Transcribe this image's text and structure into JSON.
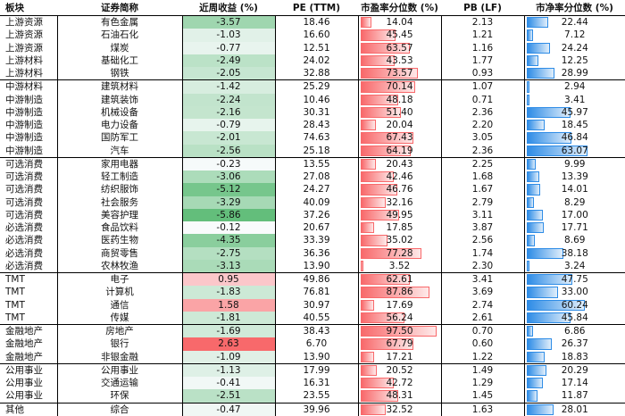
{
  "headers": [
    "板块",
    "证券简称",
    "近周收益 (%)",
    "PE (TTM)",
    "市盈率分位数 (%)",
    "PB (LF)",
    "市净率分位数 (%)"
  ],
  "colors": {
    "neg_return": "#63be7b",
    "pos_return": "#f8696b",
    "pe_bar": "#f8696b",
    "pb_bar": "#2e8ce6"
  },
  "rows": [
    {
      "sector": "上游资源",
      "name": "有色金属",
      "ret": "-3.57",
      "pe": "18.46",
      "pe_pct": "14.04",
      "pb": "2.13",
      "pb_pct": "22.44",
      "grp": true
    },
    {
      "sector": "上游资源",
      "name": "石油石化",
      "ret": "-1.03",
      "pe": "16.60",
      "pe_pct": "45.45",
      "pb": "1.21",
      "pb_pct": "7.12"
    },
    {
      "sector": "上游资源",
      "name": "煤炭",
      "ret": "-0.77",
      "pe": "12.51",
      "pe_pct": "63.57",
      "pb": "1.16",
      "pb_pct": "24.24"
    },
    {
      "sector": "上游材料",
      "name": "基础化工",
      "ret": "-2.49",
      "pe": "24.02",
      "pe_pct": "43.53",
      "pb": "1.77",
      "pb_pct": "12.25"
    },
    {
      "sector": "上游材料",
      "name": "钢铁",
      "ret": "-2.05",
      "pe": "32.88",
      "pe_pct": "73.57",
      "pb": "0.93",
      "pb_pct": "28.99"
    },
    {
      "sector": "中游材料",
      "name": "建筑材料",
      "ret": "-1.42",
      "pe": "25.29",
      "pe_pct": "70.14",
      "pb": "1.07",
      "pb_pct": "2.94",
      "grp": true
    },
    {
      "sector": "中游制造",
      "name": "建筑装饰",
      "ret": "-2.24",
      "pe": "10.46",
      "pe_pct": "48.18",
      "pb": "0.71",
      "pb_pct": "3.41"
    },
    {
      "sector": "中游制造",
      "name": "机械设备",
      "ret": "-2.16",
      "pe": "30.31",
      "pe_pct": "51.40",
      "pb": "2.36",
      "pb_pct": "45.97"
    },
    {
      "sector": "中游制造",
      "name": "电力设备",
      "ret": "-0.79",
      "pe": "28.43",
      "pe_pct": "20.04",
      "pb": "2.20",
      "pb_pct": "18.45"
    },
    {
      "sector": "中游制造",
      "name": "国防军工",
      "ret": "-2.01",
      "pe": "74.63",
      "pe_pct": "67.43",
      "pb": "3.05",
      "pb_pct": "46.84"
    },
    {
      "sector": "中游制造",
      "name": "汽车",
      "ret": "-2.56",
      "pe": "25.18",
      "pe_pct": "64.19",
      "pb": "2.36",
      "pb_pct": "63.07"
    },
    {
      "sector": "可选消费",
      "name": "家用电器",
      "ret": "-0.23",
      "pe": "13.55",
      "pe_pct": "20.43",
      "pb": "2.25",
      "pb_pct": "9.99",
      "grp": true
    },
    {
      "sector": "可选消费",
      "name": "轻工制造",
      "ret": "-3.06",
      "pe": "27.08",
      "pe_pct": "42.46",
      "pb": "1.68",
      "pb_pct": "13.39"
    },
    {
      "sector": "可选消费",
      "name": "纺织服饰",
      "ret": "-5.12",
      "pe": "24.27",
      "pe_pct": "46.76",
      "pb": "1.67",
      "pb_pct": "14.01"
    },
    {
      "sector": "可选消费",
      "name": "社会服务",
      "ret": "-3.29",
      "pe": "40.09",
      "pe_pct": "32.16",
      "pb": "2.79",
      "pb_pct": "8.29"
    },
    {
      "sector": "可选消费",
      "name": "美容护理",
      "ret": "-5.86",
      "pe": "37.26",
      "pe_pct": "49.95",
      "pb": "3.11",
      "pb_pct": "17.00"
    },
    {
      "sector": "必选消费",
      "name": "食品饮料",
      "ret": "-0.12",
      "pe": "20.67",
      "pe_pct": "17.85",
      "pb": "3.87",
      "pb_pct": "17.71"
    },
    {
      "sector": "必选消费",
      "name": "医药生物",
      "ret": "-4.35",
      "pe": "33.39",
      "pe_pct": "35.02",
      "pb": "2.56",
      "pb_pct": "8.69"
    },
    {
      "sector": "必选消费",
      "name": "商贸零售",
      "ret": "-2.75",
      "pe": "36.36",
      "pe_pct": "77.28",
      "pb": "1.74",
      "pb_pct": "38.18"
    },
    {
      "sector": "必选消费",
      "name": "农林牧渔",
      "ret": "-3.13",
      "pe": "13.90",
      "pe_pct": "3.52",
      "pb": "2.30",
      "pb_pct": "3.24"
    },
    {
      "sector": "TMT",
      "name": "电子",
      "ret": "0.95",
      "pe": "49.86",
      "pe_pct": "62.61",
      "pb": "3.41",
      "pb_pct": "47.75",
      "grp": true
    },
    {
      "sector": "TMT",
      "name": "计算机",
      "ret": "-1.83",
      "pe": "76.81",
      "pe_pct": "87.86",
      "pb": "3.69",
      "pb_pct": "33.00"
    },
    {
      "sector": "TMT",
      "name": "通信",
      "ret": "1.58",
      "pe": "30.97",
      "pe_pct": "17.69",
      "pb": "2.74",
      "pb_pct": "60.24"
    },
    {
      "sector": "TMT",
      "name": "传媒",
      "ret": "-1.81",
      "pe": "40.55",
      "pe_pct": "56.24",
      "pb": "2.61",
      "pb_pct": "45.84"
    },
    {
      "sector": "金融地产",
      "name": "房地产",
      "ret": "-1.69",
      "pe": "38.43",
      "pe_pct": "97.50",
      "pb": "0.70",
      "pb_pct": "6.86",
      "grp": true
    },
    {
      "sector": "金融地产",
      "name": "银行",
      "ret": "2.63",
      "pe": "6.70",
      "pe_pct": "67.79",
      "pb": "0.60",
      "pb_pct": "26.37"
    },
    {
      "sector": "金融地产",
      "name": "非银金融",
      "ret": "-1.09",
      "pe": "13.90",
      "pe_pct": "17.21",
      "pb": "1.22",
      "pb_pct": "18.83"
    },
    {
      "sector": "公用事业",
      "name": "公用事业",
      "ret": "-1.13",
      "pe": "17.99",
      "pe_pct": "20.52",
      "pb": "1.49",
      "pb_pct": "20.29",
      "grp": true
    },
    {
      "sector": "公用事业",
      "name": "交通运输",
      "ret": "-0.41",
      "pe": "16.31",
      "pe_pct": "42.72",
      "pb": "1.29",
      "pb_pct": "17.14"
    },
    {
      "sector": "公用事业",
      "name": "环保",
      "ret": "-2.51",
      "pe": "23.55",
      "pe_pct": "48.31",
      "pb": "1.45",
      "pb_pct": "11.87"
    },
    {
      "sector": "其他",
      "name": "综合",
      "ret": "-0.47",
      "pe": "39.96",
      "pe_pct": "32.52",
      "pb": "1.63",
      "pb_pct": "28.01",
      "grp": true
    }
  ]
}
